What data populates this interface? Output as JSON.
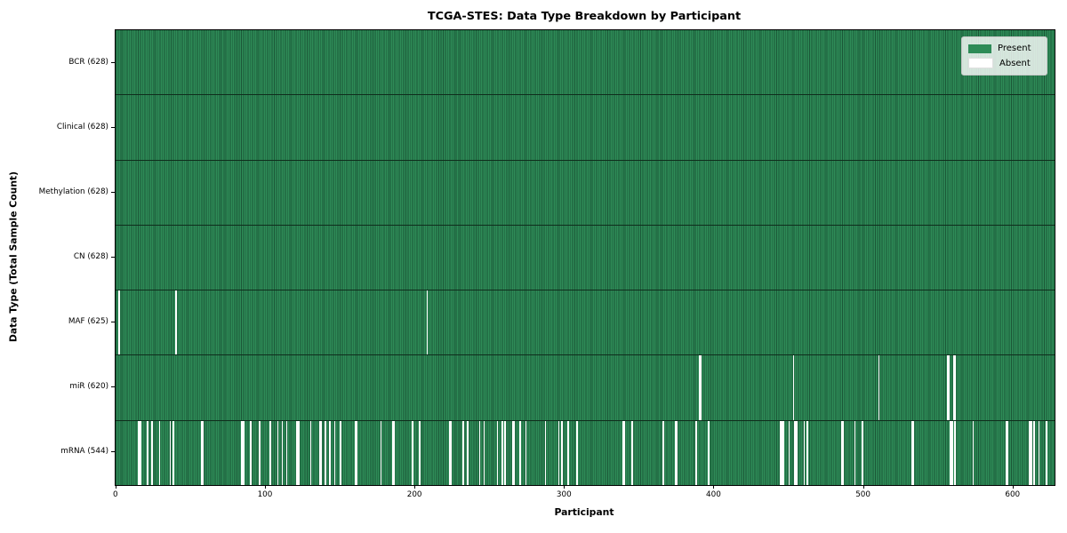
{
  "chart_data": {
    "type": "heatmap",
    "title": "TCGA-STES: Data Type Breakdown by Participant",
    "xlabel": "Participant",
    "ylabel": "Data Type (Total Sample Count)",
    "n_participants": 628,
    "xlim": [
      0,
      628
    ],
    "x_ticks": [
      0,
      100,
      200,
      300,
      400,
      500,
      600
    ],
    "grid": false,
    "legend_position": "upper right",
    "legend_items": [
      {
        "label": "Present",
        "color": "#2e8b57"
      },
      {
        "label": "Absent",
        "color": "#ffffff"
      }
    ],
    "colors": {
      "present_fill": "#2e8b57",
      "present_edge": "#1b5737",
      "absent_fill": "#ffffff",
      "row_divider": "#0f2d1c",
      "plot_border": "#000000"
    },
    "rows": [
      {
        "data_type": "BCR",
        "label": "BCR (628)",
        "present_count": 628,
        "absent_count": 0,
        "absent_participants": []
      },
      {
        "data_type": "Clinical",
        "label": "Clinical (628)",
        "present_count": 628,
        "absent_count": 0,
        "absent_participants": []
      },
      {
        "data_type": "Methylation",
        "label": "Methylation (628)",
        "present_count": 628,
        "absent_count": 0,
        "absent_participants": []
      },
      {
        "data_type": "CN",
        "label": "CN (628)",
        "present_count": 628,
        "absent_count": 0,
        "absent_participants": []
      },
      {
        "data_type": "MAF",
        "label": "MAF (625)",
        "present_count": 625,
        "absent_count": 3,
        "absent_participants": [
          2,
          40,
          208
        ]
      },
      {
        "data_type": "miR",
        "label": "miR (620)",
        "present_count": 620,
        "absent_count": 8,
        "absent_participants": [
          390,
          391,
          453,
          510,
          556,
          557,
          560,
          561
        ]
      },
      {
        "data_type": "mRNA",
        "label": "mRNA (544)",
        "present_count": 544,
        "absent_count": 84,
        "absent_participants": [
          15,
          16,
          21,
          24,
          29,
          36,
          38,
          57,
          58,
          84,
          85,
          90,
          96,
          103,
          108,
          111,
          114,
          121,
          122,
          130,
          136,
          137,
          140,
          143,
          146,
          150,
          160,
          161,
          177,
          185,
          186,
          198,
          203,
          223,
          224,
          232,
          235,
          243,
          246,
          255,
          258,
          260,
          265,
          266,
          270,
          274,
          287,
          296,
          298,
          302,
          308,
          339,
          340,
          345,
          366,
          374,
          375,
          388,
          396,
          444,
          445,
          446,
          450,
          454,
          455,
          460,
          462,
          485,
          486,
          494,
          499,
          532,
          533,
          558,
          559,
          561,
          573,
          595,
          596,
          611,
          612,
          614,
          617,
          622
        ]
      }
    ]
  }
}
